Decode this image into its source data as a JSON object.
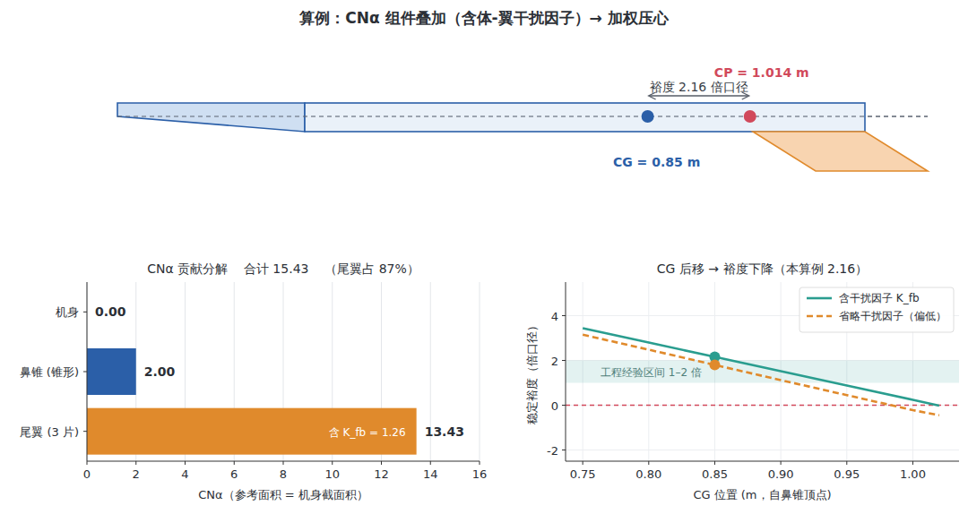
{
  "title": "算例：CNα 组件叠加（含体-翼干扰因子）→ 加权压心",
  "diagram": {
    "cg": {
      "label": "CG = 0.85 m",
      "value": 0.85,
      "color": "#2b5fa8"
    },
    "cp": {
      "label": "CP = 1.014 m",
      "value": 1.014,
      "color": "#d1495b"
    },
    "margin_label": "裕度 2.16 倍口径"
  },
  "chart_data": [
    {
      "type": "bar",
      "orientation": "horizontal",
      "title": "CNα 贡献分解    合计 15.43    （尾翼占 87%）",
      "x_label": "CNα（参考面积 = 机身截面积）",
      "categories": [
        "机身",
        "鼻锥 (锥形)",
        "尾翼 (3 片)"
      ],
      "values": [
        0.0,
        2.0,
        13.43
      ],
      "value_labels": [
        "0.00",
        "2.00",
        "13.43"
      ],
      "data_labels": true,
      "colors": [
        "#9fb3cc",
        "#2b5fa8",
        "#e08a2c"
      ],
      "annotation": "含 K_fb = 1.26",
      "xlim": [
        0,
        16
      ],
      "xticks": [
        0,
        2,
        4,
        6,
        8,
        10,
        12,
        14,
        16
      ],
      "grid": true
    },
    {
      "type": "line",
      "title": "CG 后移 → 裕度下降（本算例 2.16）",
      "x_label": "CG 位置 (m，自鼻锥顶点)",
      "y_label": "稳定裕度（倍口径）",
      "x": [
        0.75,
        0.8,
        0.85,
        0.9,
        0.95,
        1.0,
        1.02
      ],
      "series": [
        {
          "name": "含干扰因子 K_fb",
          "color": "#2a9d8f",
          "line_style": "solid",
          "values": [
            3.44,
            2.8,
            2.16,
            1.52,
            0.88,
            0.24,
            -0.02
          ]
        },
        {
          "name": "省略干扰因子（偏低）",
          "color": "#e08a2c",
          "line_style": "dashed",
          "values": [
            3.15,
            2.48,
            1.8,
            1.12,
            0.45,
            -0.22,
            -0.45
          ]
        }
      ],
      "points": [
        {
          "x": 0.85,
          "y": 2.16,
          "color": "#2a9d8f"
        },
        {
          "x": 0.85,
          "y": 1.8,
          "color": "#e08a2c"
        }
      ],
      "band": {
        "range": [
          1,
          2
        ],
        "label": "工程经验区间 1–2 倍",
        "color": "#2a9d8f"
      },
      "reference_line": {
        "y": 0,
        "color": "#d1495b"
      },
      "legend": "upper right",
      "xlim": [
        0.737,
        1.035
      ],
      "ylim": [
        -2.5,
        5.5
      ],
      "xticks": [
        0.75,
        {
          "value": 0.8,
          "label": "0.80"
        },
        0.85,
        {
          "value": 0.9,
          "label": "0.90"
        },
        0.95,
        {
          "value": 1.0,
          "label": "1.00"
        }
      ],
      "yticks": [
        -2,
        0,
        2,
        4
      ],
      "grid": true
    }
  ]
}
